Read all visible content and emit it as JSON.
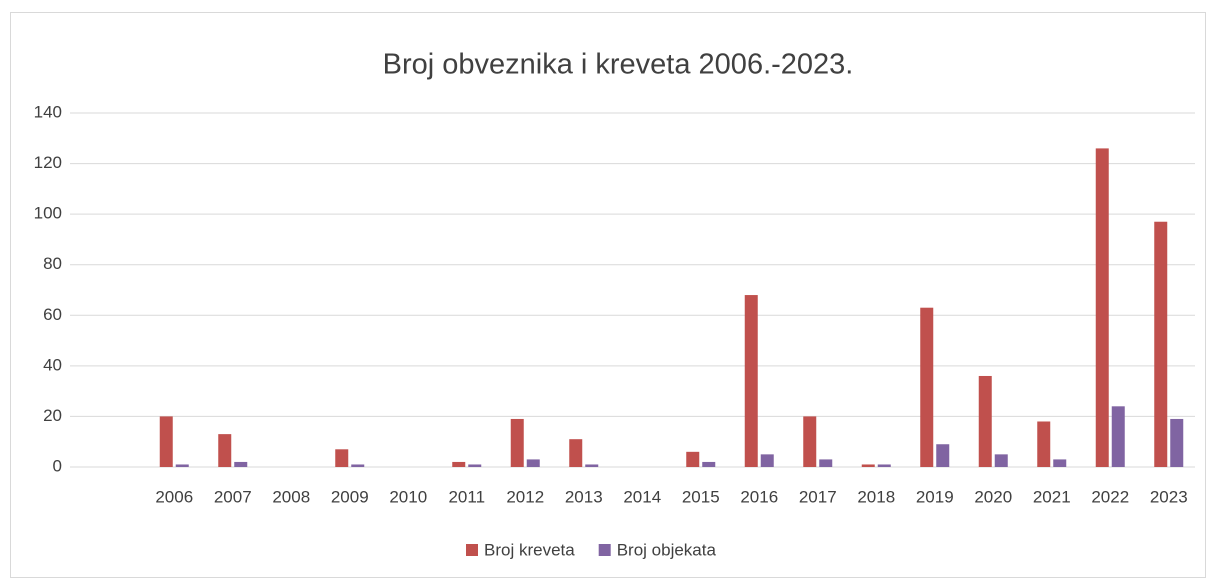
{
  "chart_data": {
    "type": "bar",
    "title": "Broj obveznika i kreveta 2006.-2023.",
    "categories": [
      "2006",
      "2007",
      "2008",
      "2009",
      "2010",
      "2011",
      "2012",
      "2013",
      "2014",
      "2015",
      "2016",
      "2017",
      "2018",
      "2019",
      "2020",
      "2021",
      "2022",
      "2023"
    ],
    "series": [
      {
        "name": "Broj kreveta",
        "color": "#c0504d",
        "values": [
          20,
          13,
          0,
          7,
          0,
          2,
          19,
          11,
          0,
          6,
          68,
          20,
          1,
          63,
          36,
          18,
          126,
          97
        ]
      },
      {
        "name": "Broj objekata",
        "color": "#8064a2",
        "values": [
          1,
          2,
          0,
          1,
          0,
          1,
          3,
          1,
          0,
          2,
          5,
          3,
          1,
          9,
          5,
          3,
          24,
          19
        ]
      }
    ],
    "ylim": [
      0,
      140
    ],
    "yticks": [
      0,
      20,
      40,
      60,
      80,
      100,
      120,
      140
    ],
    "grid": true,
    "legend": "bottom"
  }
}
